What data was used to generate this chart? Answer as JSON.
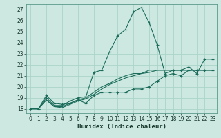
{
  "title": "",
  "xlabel": "Humidex (Indice chaleur)",
  "ylabel": "",
  "bg_color": "#cce8e0",
  "grid_color": "#aad4c8",
  "line_color": "#1a6b5a",
  "xlim": [
    -0.5,
    23.5
  ],
  "ylim": [
    17.6,
    27.5
  ],
  "xticks": [
    0,
    1,
    2,
    3,
    4,
    5,
    6,
    7,
    8,
    9,
    10,
    11,
    12,
    13,
    14,
    15,
    16,
    17,
    18,
    19,
    20,
    21,
    22,
    23
  ],
  "yticks": [
    18,
    19,
    20,
    21,
    22,
    23,
    24,
    25,
    26,
    27
  ],
  "series": [
    {
      "x": [
        0,
        1,
        2,
        3,
        4,
        5,
        6,
        7,
        8,
        9,
        10,
        11,
        12,
        13,
        14,
        15,
        16,
        17,
        18,
        19,
        20,
        21,
        22,
        23
      ],
      "y": [
        18.0,
        18.0,
        19.0,
        18.3,
        18.3,
        18.7,
        19.0,
        19.1,
        21.3,
        21.5,
        23.2,
        24.6,
        25.2,
        26.8,
        27.2,
        25.8,
        23.8,
        21.2,
        21.5,
        21.5,
        21.8,
        21.2,
        22.5,
        22.5
      ],
      "marker": true
    },
    {
      "x": [
        0,
        1,
        2,
        3,
        4,
        5,
        6,
        7,
        8,
        9,
        10,
        11,
        12,
        13,
        14,
        15,
        16,
        17,
        18,
        19,
        20,
        21,
        22,
        23
      ],
      "y": [
        18.0,
        18.0,
        19.2,
        18.5,
        18.4,
        18.5,
        18.8,
        18.5,
        19.2,
        19.5,
        19.5,
        19.5,
        19.5,
        19.8,
        19.8,
        20.0,
        20.5,
        21.0,
        21.2,
        21.0,
        21.5,
        21.5,
        21.5,
        21.5
      ],
      "marker": true
    },
    {
      "x": [
        0,
        1,
        2,
        3,
        4,
        5,
        6,
        7,
        8,
        9,
        10,
        11,
        12,
        13,
        14,
        15,
        16,
        17,
        18,
        19,
        20,
        21,
        22,
        23
      ],
      "y": [
        18.0,
        18.0,
        18.8,
        18.2,
        18.2,
        18.5,
        18.8,
        19.0,
        19.5,
        20.0,
        20.3,
        20.7,
        21.0,
        21.2,
        21.2,
        21.5,
        21.5,
        21.5,
        21.5,
        21.5,
        21.5,
        21.5,
        21.5,
        21.5
      ],
      "marker": false
    },
    {
      "x": [
        0,
        1,
        2,
        3,
        4,
        5,
        6,
        7,
        8,
        9,
        10,
        11,
        12,
        13,
        14,
        15,
        16,
        17,
        18,
        19,
        20,
        21,
        22,
        23
      ],
      "y": [
        18.0,
        18.0,
        18.8,
        18.2,
        18.1,
        18.4,
        18.7,
        18.9,
        19.3,
        19.8,
        20.2,
        20.5,
        20.8,
        21.0,
        21.2,
        21.3,
        21.5,
        21.5,
        21.5,
        21.5,
        21.5,
        21.5,
        21.5,
        21.5
      ],
      "marker": false
    }
  ]
}
